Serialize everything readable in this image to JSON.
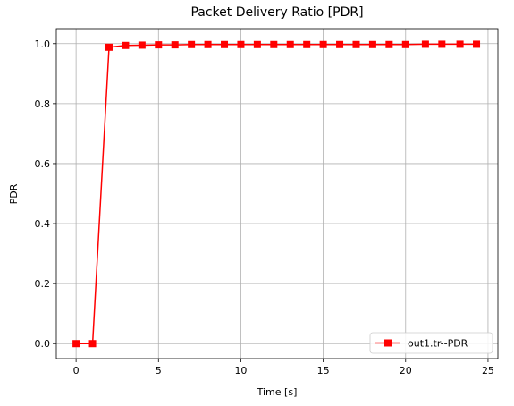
{
  "chart_data": {
    "type": "line",
    "title": "Packet Delivery Ratio [PDR]",
    "xlabel": "Time [s]",
    "ylabel": "PDR",
    "xlim": [
      -1.2,
      25.6
    ],
    "ylim": [
      -0.05,
      1.05
    ],
    "xticks": [
      0,
      5,
      10,
      15,
      20,
      25
    ],
    "yticks": [
      0.0,
      0.2,
      0.4,
      0.6,
      0.8,
      1.0
    ],
    "xtick_labels": [
      "0",
      "5",
      "10",
      "15",
      "20",
      "25"
    ],
    "ytick_labels": [
      "0.0",
      "0.2",
      "0.4",
      "0.6",
      "0.8",
      "1.0"
    ],
    "grid": true,
    "legend_position": "bottom-right",
    "series": [
      {
        "name": "out1.tr--PDR",
        "color": "#ff0000",
        "marker": "square",
        "x": [
          0,
          1,
          2,
          3,
          4,
          5,
          6,
          7,
          8,
          9,
          10,
          11,
          12,
          13,
          14,
          15,
          16,
          17,
          18,
          19,
          20,
          21.2,
          22.2,
          23.3,
          24.3
        ],
        "y": [
          0.0,
          0.0,
          0.988,
          0.994,
          0.995,
          0.996,
          0.996,
          0.997,
          0.997,
          0.997,
          0.997,
          0.997,
          0.997,
          0.997,
          0.997,
          0.997,
          0.997,
          0.997,
          0.997,
          0.997,
          0.997,
          0.998,
          0.998,
          0.998,
          0.998
        ]
      }
    ]
  }
}
